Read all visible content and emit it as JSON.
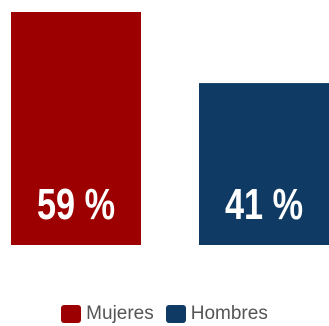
{
  "chart_data": {
    "type": "bar",
    "categories": [
      "Mujeres",
      "Hombres"
    ],
    "values": [
      59,
      41
    ],
    "data_labels": [
      "59 %",
      "41 %"
    ],
    "colors": [
      "#9c0000",
      "#0f3a63"
    ],
    "ylim": [
      0,
      59
    ],
    "grid": false,
    "legend": {
      "placement": "bottom",
      "entries": [
        "Mujeres",
        "Hombres"
      ]
    }
  }
}
